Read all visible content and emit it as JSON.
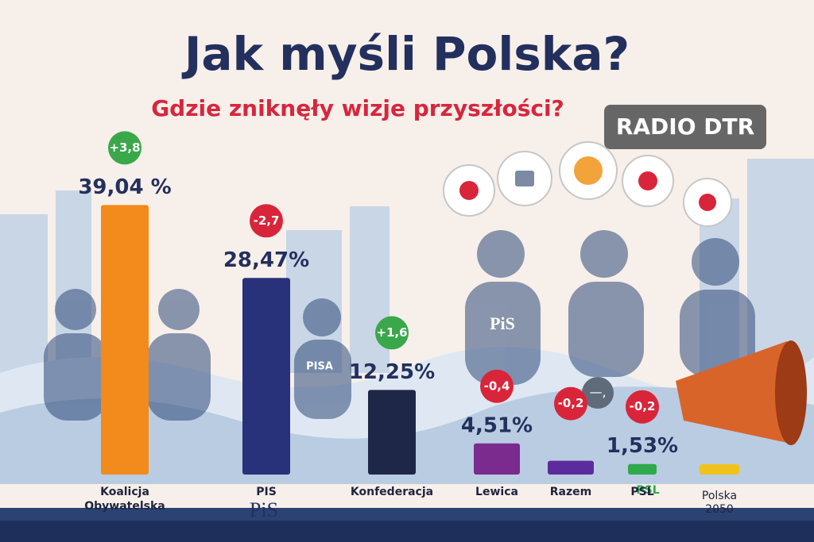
{
  "chart_data": {
    "type": "bar",
    "title": "Jak myśli Polska?",
    "subtitle": "Gdzie zniknęły wizje przyszłości?",
    "badge": "RADIO DTR",
    "categories": [
      "Koalicja Obywatelska",
      "PIS",
      "Konfederacja",
      "Lewica",
      "Razem",
      "PSL",
      "Polska 2050"
    ],
    "values": [
      39.04,
      28.47,
      12.25,
      4.51,
      2.0,
      1.53,
      1.5
    ],
    "value_labels": [
      "39,04 %",
      "28,47%",
      "12,25%",
      "4,51%",
      null,
      "1,53%",
      null
    ],
    "colors": [
      "#f28a1c",
      "#27327a",
      "#1f2748",
      "#7b2a8e",
      "#5d2c9c",
      "#2eaa4a",
      "#f1c21b"
    ],
    "changes": [
      3.8,
      -2.7,
      1.6,
      -0.4,
      -0.2,
      -0.2,
      null
    ],
    "change_labels": [
      "+3,8",
      "-2,7",
      "+1,6",
      "-0,4",
      "-0,2",
      "-0,2",
      null
    ],
    "change_colors": {
      "up": "#3aa84a",
      "down": "#d9253a"
    },
    "floating_label": "—,",
    "logos": [
      "PiS",
      "PSL"
    ],
    "shirt_texts": [
      "PISA",
      "PiS"
    ]
  }
}
